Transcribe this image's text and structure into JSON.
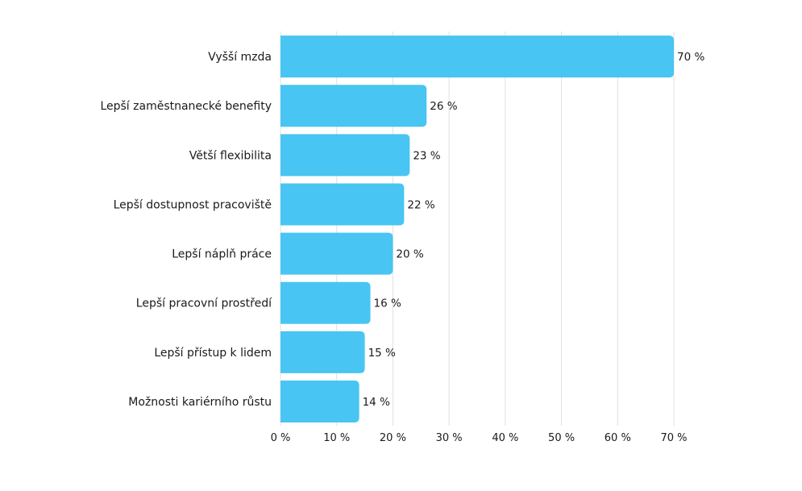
{
  "chart_data": {
    "type": "bar",
    "orientation": "horizontal",
    "categories": [
      "Vyšší mzda",
      "Lepší zaměstnanecké benefity",
      "Větší flexibilita",
      "Lepší dostupnost pracoviště",
      "Lepší náplň práce",
      "Lepší pracovní prostředí",
      "Lepší přístup k lidem",
      "Možnosti kariérního růstu"
    ],
    "values": [
      70,
      26,
      23,
      22,
      20,
      16,
      15,
      14
    ],
    "data_labels": [
      "70 %",
      "26 %",
      "23 %",
      "22 %",
      "20 %",
      "16 %",
      "15 %",
      "14 %"
    ],
    "xticks": [
      0,
      10,
      20,
      30,
      40,
      50,
      60,
      70
    ],
    "xtick_labels": [
      "0 %",
      "10 %",
      "20 %",
      "30 %",
      "40 %",
      "50 %",
      "60 %",
      "70 %"
    ],
    "xlim": [
      0,
      70
    ],
    "grid": "vertical",
    "bar_color": "#48c5f2",
    "grid_color": "#e0e0e0"
  }
}
